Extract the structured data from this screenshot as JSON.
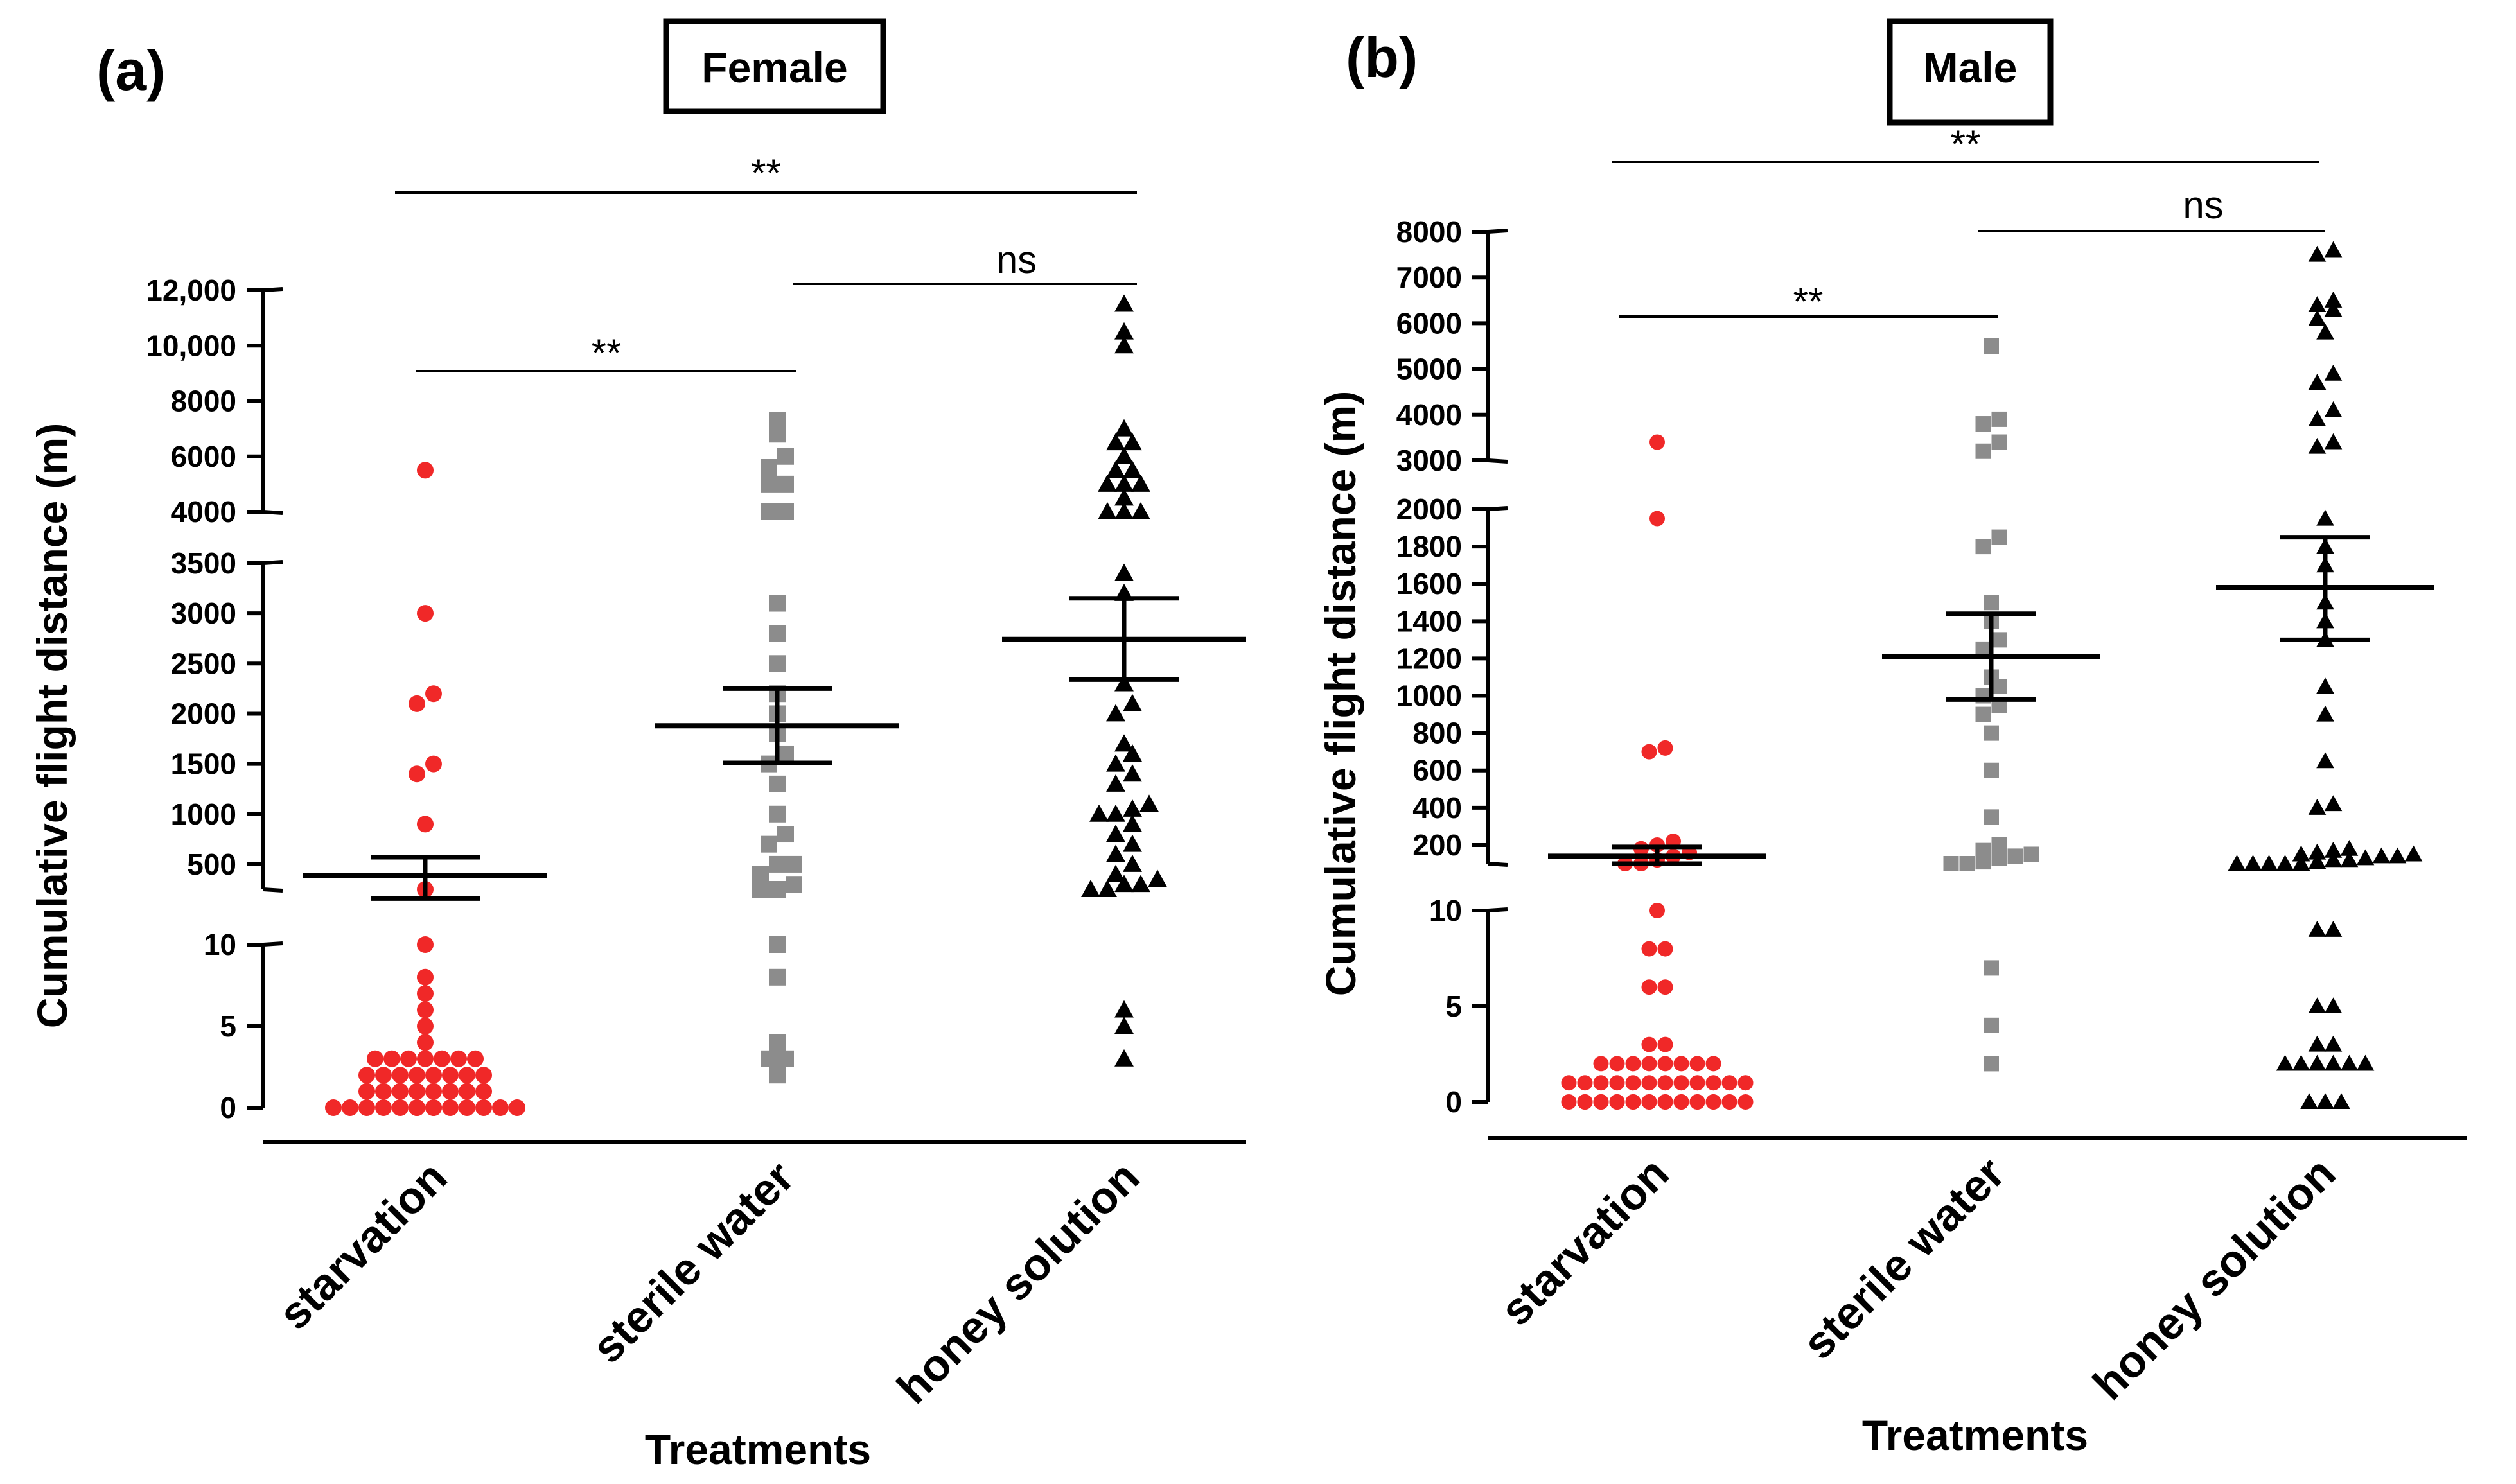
{
  "colors": {
    "starvation": "#f02828",
    "sterile water": "#8c8c8c",
    "honey solution": "#000000"
  },
  "chart_data": [
    {
      "type": "scatter",
      "panel_label": "(a)",
      "title": "Female",
      "xlabel": "Treatments",
      "ylabel": "Cumulative flight distance (m)",
      "categories": [
        "starvation",
        "sterile water",
        "honey solution"
      ],
      "marker_shapes": [
        "circle",
        "square",
        "triangle"
      ],
      "y_tick_labels": [
        "0",
        "5",
        "10",
        "500",
        "1000",
        "1500",
        "2000",
        "2500",
        "3000",
        "3500",
        "4000",
        "6000",
        "8000",
        "10,000",
        "12,000"
      ],
      "ylim": [
        0,
        12000
      ],
      "axis_breaks": [
        [
          10,
          250
        ],
        [
          3500,
          4000
        ]
      ],
      "series": [
        {
          "name": "starvation",
          "mean": 390,
          "sem_low": 210,
          "sem_high": 570,
          "values": [
            0,
            0,
            0,
            0,
            0,
            0,
            0,
            0,
            0,
            0,
            0,
            0,
            0,
            0,
            1,
            1,
            1,
            1,
            1,
            1,
            1,
            1,
            2,
            2,
            2,
            2,
            2,
            2,
            2,
            2,
            3,
            3,
            3,
            3,
            3,
            3,
            3,
            4,
            5,
            6,
            7,
            8,
            10,
            250,
            900,
            1400,
            1500,
            2100,
            2200,
            3000,
            5500
          ]
        },
        {
          "name": "sterile water",
          "mean": 1880,
          "sem_low": 1510,
          "sem_high": 2250,
          "values": [
            2,
            3,
            3,
            4,
            8,
            10,
            250,
            250,
            300,
            400,
            500,
            500,
            700,
            800,
            1000,
            1300,
            1500,
            1600,
            1800,
            2000,
            2200,
            2500,
            2800,
            3100,
            4000,
            4000,
            5000,
            5000,
            5600,
            6000,
            6800,
            7300
          ]
        },
        {
          "name": "honey solution",
          "mean": 2740,
          "sem_low": 2340,
          "sem_high": 3150,
          "values": [
            3,
            5,
            6,
            250,
            250,
            300,
            300,
            350,
            400,
            500,
            600,
            700,
            800,
            900,
            1000,
            1000,
            1050,
            1100,
            1300,
            1400,
            1500,
            1600,
            1700,
            2000,
            2100,
            2300,
            3200,
            3400,
            4000,
            4000,
            4000,
            4500,
            5000,
            5000,
            5000,
            5500,
            5500,
            6000,
            6500,
            6500,
            7000,
            10000,
            10500,
            11500
          ]
        }
      ],
      "significance": [
        {
          "label": "**",
          "from": "starvation",
          "to": "honey solution"
        },
        {
          "label": "ns",
          "from": "sterile water",
          "to": "honey solution"
        },
        {
          "label": "**",
          "from": "starvation",
          "to": "sterile water"
        }
      ]
    },
    {
      "type": "scatter",
      "panel_label": "(b)",
      "title": "Male",
      "xlabel": "Treatments",
      "ylabel": "Cumulative flight distance (m)",
      "categories": [
        "starvation",
        "sterile water",
        "honey solution"
      ],
      "marker_shapes": [
        "circle",
        "square",
        "triangle"
      ],
      "y_tick_labels": [
        "0",
        "5",
        "10",
        "200",
        "400",
        "600",
        "800",
        "1000",
        "1200",
        "1400",
        "1600",
        "1800",
        "2000",
        "3000",
        "4000",
        "5000",
        "6000",
        "7000",
        "8000"
      ],
      "ylim": [
        0,
        8000
      ],
      "axis_breaks": [
        [
          10,
          100
        ],
        [
          2000,
          3000
        ]
      ],
      "series": [
        {
          "name": "starvation",
          "mean": 140,
          "sem_low": 100,
          "sem_high": 190,
          "values": [
            0,
            0,
            0,
            0,
            0,
            0,
            0,
            0,
            0,
            0,
            0,
            0,
            0,
            0,
            0,
            0,
            0,
            0,
            0,
            0,
            0,
            0,
            1,
            1,
            1,
            1,
            1,
            1,
            1,
            1,
            1,
            1,
            1,
            1,
            2,
            2,
            2,
            2,
            2,
            2,
            2,
            2,
            3,
            3,
            6,
            6,
            8,
            8,
            10,
            100,
            100,
            120,
            140,
            160,
            180,
            200,
            220,
            700,
            720,
            1950,
            3400
          ]
        },
        {
          "name": "sterile water",
          "mean": 1210,
          "sem_low": 980,
          "sem_high": 1440,
          "values": [
            2,
            4,
            7,
            100,
            100,
            110,
            130,
            140,
            150,
            170,
            200,
            350,
            600,
            800,
            900,
            950,
            1000,
            1050,
            1100,
            1250,
            1300,
            1400,
            1500,
            1800,
            1850,
            3200,
            3400,
            3800,
            3900,
            5500
          ]
        },
        {
          "name": "honey solution",
          "mean": 1580,
          "sem_low": 1300,
          "sem_high": 1850,
          "values": [
            0,
            0,
            0,
            2,
            2,
            2,
            2,
            2,
            2,
            3,
            3,
            5,
            5,
            9,
            9,
            100,
            100,
            100,
            100,
            100,
            110,
            120,
            120,
            130,
            140,
            140,
            150,
            150,
            160,
            170,
            180,
            400,
            420,
            650,
            900,
            1050,
            1300,
            1400,
            1500,
            1700,
            1800,
            1950,
            3300,
            3400,
            3900,
            4100,
            4700,
            4900,
            5800,
            6100,
            6300,
            6400,
            6500,
            7500,
            7600
          ]
        }
      ],
      "significance": [
        {
          "label": "**",
          "from": "starvation",
          "to": "honey solution"
        },
        {
          "label": "ns",
          "from": "sterile water",
          "to": "honey solution"
        },
        {
          "label": "**",
          "from": "starvation",
          "to": "sterile water"
        }
      ]
    }
  ]
}
